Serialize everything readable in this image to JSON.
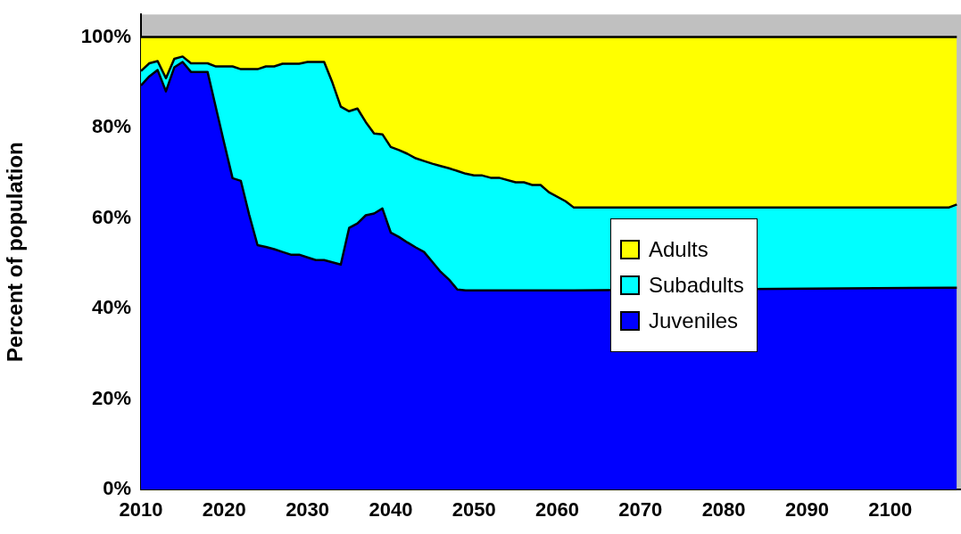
{
  "chart_data": {
    "type": "area",
    "stacked": true,
    "ylabel": "Percent of population",
    "legend": "right",
    "x": [
      2010,
      2011,
      2012,
      2013,
      2014,
      2015,
      2016,
      2018,
      2019,
      2020,
      2021,
      2022,
      2023,
      2024,
      2025,
      2026,
      2027,
      2028,
      2029,
      2030,
      2031,
      2032,
      2033,
      2034,
      2035,
      2036,
      2037,
      2038,
      2039,
      2040,
      2041,
      2042,
      2043,
      2044,
      2045,
      2046,
      2047,
      2048,
      2049,
      2050,
      2051,
      2052,
      2053,
      2055,
      2056,
      2057,
      2058,
      2059,
      2061,
      2062,
      2107,
      2108
    ],
    "xlim": [
      2010,
      2108.5
    ],
    "xticks": [
      2010,
      2020,
      2030,
      2040,
      2050,
      2060,
      2070,
      2080,
      2090,
      2100
    ],
    "ylim": [
      0,
      105
    ],
    "yticks": [
      {
        "value": 0,
        "label": "0%"
      },
      {
        "value": 20,
        "label": "20%"
      },
      {
        "value": 40,
        "label": "40%"
      },
      {
        "value": 60,
        "label": "60%"
      },
      {
        "value": 80,
        "label": "80%"
      },
      {
        "value": 100,
        "label": "100%"
      }
    ],
    "series": [
      {
        "name": "Juveniles",
        "color": "#0000ff",
        "values": [
          89.3,
          91.3,
          92.7,
          88.0,
          93.3,
          94.5,
          92.3,
          92.3,
          84.4,
          76.5,
          68.8,
          68.2,
          60.7,
          54.0,
          53.6,
          53.1,
          52.5,
          51.9,
          51.9,
          51.3,
          50.7,
          50.7,
          50.2,
          49.7,
          57.8,
          58.8,
          60.6,
          61.0,
          62.1,
          56.8,
          55.8,
          54.6,
          53.5,
          52.5,
          50.3,
          48.1,
          46.4,
          44.2,
          44.0,
          44.0,
          44.0,
          44.0,
          44.0,
          44.0,
          44.0,
          44.0,
          44.0,
          44.0,
          44.0,
          44.0,
          44.6,
          44.6
        ]
      },
      {
        "name": "Subadults",
        "color": "#00ffff",
        "values": [
          3.2,
          2.9,
          2.0,
          2.9,
          1.9,
          1.2,
          1.9,
          1.9,
          9.1,
          17.0,
          24.7,
          24.7,
          32.2,
          38.9,
          39.9,
          40.4,
          41.6,
          42.2,
          42.2,
          43.2,
          43.8,
          43.8,
          39.7,
          34.9,
          25.8,
          25.4,
          20.6,
          17.7,
          16.4,
          18.9,
          19.2,
          19.6,
          19.7,
          20.1,
          21.7,
          23.4,
          24.6,
          26.2,
          25.8,
          25.4,
          25.4,
          24.9,
          24.9,
          23.9,
          23.9,
          23.3,
          23.3,
          21.7,
          19.7,
          18.3,
          17.7,
          18.4
        ]
      },
      {
        "name": "Adults",
        "color": "#ffff00",
        "values": [
          7.5,
          5.8,
          5.3,
          9.1,
          4.8,
          4.3,
          5.8,
          5.8,
          6.5,
          6.5,
          6.5,
          7.1,
          7.1,
          7.1,
          6.5,
          6.5,
          5.9,
          5.9,
          5.9,
          5.5,
          5.5,
          5.5,
          10.1,
          15.4,
          16.4,
          15.8,
          18.8,
          21.3,
          21.5,
          24.3,
          25.0,
          25.8,
          26.8,
          27.4,
          28.0,
          28.5,
          29.0,
          29.6,
          30.2,
          30.6,
          30.6,
          31.1,
          31.1,
          32.1,
          32.1,
          32.7,
          32.7,
          34.3,
          36.3,
          37.7,
          37.7,
          37.0
        ]
      }
    ]
  }
}
